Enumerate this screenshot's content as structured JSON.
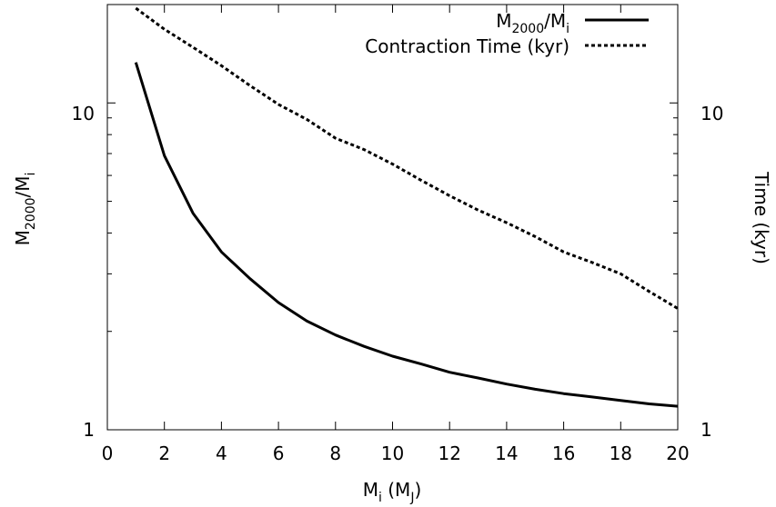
{
  "chart_data": {
    "type": "line",
    "xlabel": "M_i (M_J)",
    "ylabel_left": "M_2000/M_i",
    "ylabel_right": "Time (kyr)",
    "xlim": [
      0,
      20
    ],
    "ylim_left": [
      1,
      20
    ],
    "ylim_right": [
      1,
      20
    ],
    "yscale": "log",
    "grid": false,
    "legend_position": "top-right",
    "x_ticks": [
      0,
      2,
      4,
      6,
      8,
      10,
      12,
      14,
      16,
      18,
      20
    ],
    "y_ticks_labeled": [
      1,
      10
    ],
    "series": [
      {
        "name": "M_2000/M_i",
        "style": "solid",
        "x": [
          1,
          2,
          3,
          4,
          5,
          6,
          7,
          8,
          9,
          10,
          11,
          12,
          13,
          14,
          15,
          16,
          17,
          18,
          19,
          20
        ],
        "values": [
          13.3,
          6.9,
          4.6,
          3.5,
          2.9,
          2.45,
          2.15,
          1.95,
          1.8,
          1.68,
          1.59,
          1.5,
          1.44,
          1.38,
          1.33,
          1.29,
          1.26,
          1.23,
          1.2,
          1.18
        ]
      },
      {
        "name": "Contraction Time (kyr)",
        "style": "dashed",
        "x": [
          1,
          2,
          3,
          4,
          5,
          6,
          7,
          8,
          9,
          10,
          11,
          12,
          13,
          14,
          15,
          16,
          17,
          18,
          19,
          20
        ],
        "values": [
          19.5,
          16.8,
          14.8,
          13.0,
          11.3,
          9.9,
          8.9,
          7.8,
          7.2,
          6.5,
          5.8,
          5.2,
          4.7,
          4.3,
          3.9,
          3.5,
          3.25,
          3.0,
          2.65,
          2.35
        ]
      }
    ]
  },
  "text": {
    "xlabel_main": "M",
    "xlabel_sub": "i",
    "xlabel_mid": " (M",
    "xlabel_sub2": "J",
    "xlabel_end": ")",
    "ylabel_left_main": "M",
    "ylabel_left_sub": "2000",
    "ylabel_left_mid": "/M",
    "ylabel_left_sub2": "i",
    "ylabel_right": "Time (kyr)",
    "legend1_main": "M",
    "legend1_sub": "2000",
    "legend1_mid": "/M",
    "legend1_sub2": "i",
    "legend2": "Contraction Time (kyr)",
    "ytick_left_10": "10",
    "ytick_left_1": "1",
    "ytick_right_10": "10",
    "ytick_right_1": "1"
  }
}
